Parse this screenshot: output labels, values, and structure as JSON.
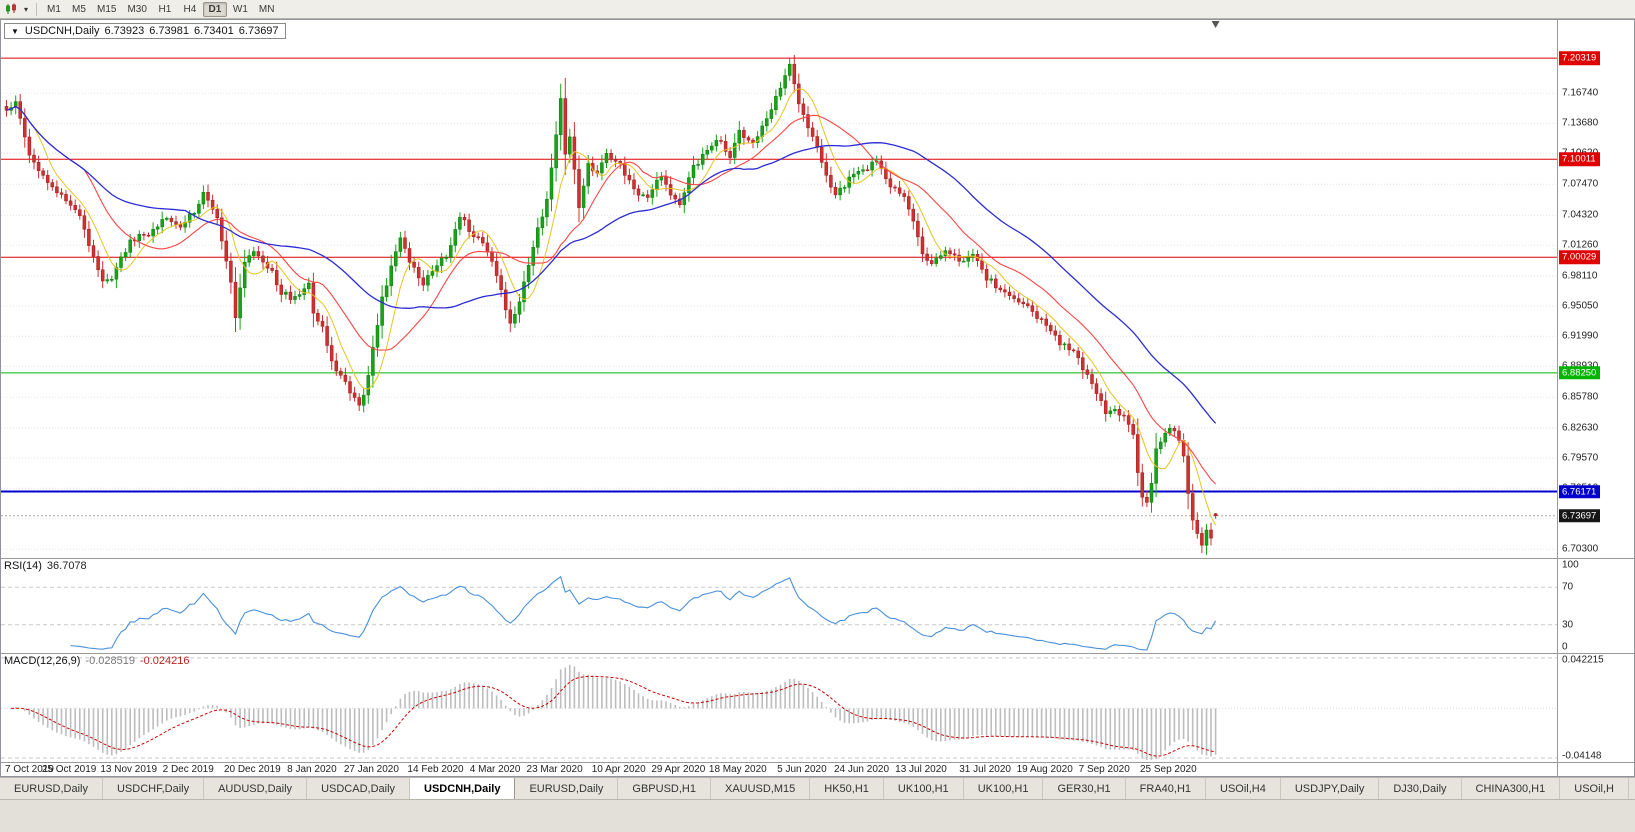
{
  "toolbar": {
    "timeframes": [
      "M1",
      "M5",
      "M15",
      "M30",
      "H1",
      "H4",
      "D1",
      "W1",
      "MN"
    ],
    "active_timeframe": "D1"
  },
  "chart": {
    "header": {
      "expander": "▼",
      "symbol": "USDCNH,Daily",
      "open": "6.73923",
      "high": "6.73981",
      "low": "6.73401",
      "close": "6.73697"
    },
    "price_axis_ticks": [
      "7.16740",
      "7.13680",
      "7.10620",
      "7.07470",
      "7.04320",
      "7.01260",
      "6.98110",
      "6.95050",
      "6.91990",
      "6.88930",
      "6.85780",
      "6.82630",
      "6.79570",
      "6.76510",
      "6.73450",
      "6.70300"
    ],
    "current_price_label": "6.73697"
  },
  "chart_data": {
    "type": "candlestick",
    "symbol": "USDCNH",
    "timeframe": "Daily",
    "title": "USDCNH,Daily",
    "last_ohlc": {
      "open": 6.73923,
      "high": 6.73981,
      "low": 6.73401,
      "close": 6.73697
    },
    "y_axis_range": [
      6.694,
      7.242
    ],
    "num_candles": 265,
    "horizontal_levels": [
      {
        "price": 7.20319,
        "label": "7.20319",
        "color": "#e00000",
        "width": 1
      },
      {
        "price": 7.10011,
        "label": "7.10011",
        "color": "#e00000",
        "width": 1
      },
      {
        "price": 7.00029,
        "label": "7.00029",
        "color": "#e00000",
        "width": 1
      },
      {
        "price": 6.8825,
        "label": "6.88250",
        "color": "#00b400",
        "width": 1
      },
      {
        "price": 6.76171,
        "label": "6.76171",
        "color": "#0000cc",
        "width": 2
      }
    ],
    "price_path_anchors": [
      [
        0,
        7.15
      ],
      [
        2,
        7.16
      ],
      [
        5,
        7.105
      ],
      [
        9,
        7.076
      ],
      [
        13,
        7.058
      ],
      [
        16,
        7.042
      ],
      [
        19,
        7.0
      ],
      [
        21,
        6.976
      ],
      [
        23,
        6.979
      ],
      [
        25,
        7.001
      ],
      [
        27,
        7.017
      ],
      [
        31,
        7.023
      ],
      [
        34,
        7.039
      ],
      [
        38,
        7.031
      ],
      [
        41,
        7.046
      ],
      [
        43,
        7.066
      ],
      [
        46,
        7.041
      ],
      [
        49,
        6.976
      ],
      [
        50,
        6.938
      ],
      [
        52,
        6.996
      ],
      [
        54,
        7.007
      ],
      [
        58,
        6.986
      ],
      [
        60,
        6.963
      ],
      [
        63,
        6.96
      ],
      [
        66,
        6.973
      ],
      [
        67,
        6.944
      ],
      [
        69,
        6.929
      ],
      [
        71,
        6.894
      ],
      [
        73,
        6.881
      ],
      [
        75,
        6.863
      ],
      [
        77,
        6.849
      ],
      [
        79,
        6.879
      ],
      [
        80,
        6.909
      ],
      [
        82,
        6.959
      ],
      [
        84,
        6.991
      ],
      [
        86,
        7.021
      ],
      [
        88,
        6.996
      ],
      [
        91,
        6.973
      ],
      [
        93,
        6.986
      ],
      [
        96,
        7.001
      ],
      [
        99,
        7.042
      ],
      [
        101,
        7.027
      ],
      [
        104,
        7.016
      ],
      [
        106,
        6.996
      ],
      [
        108,
        6.966
      ],
      [
        110,
        6.933
      ],
      [
        112,
        6.956
      ],
      [
        115,
        7.011
      ],
      [
        118,
        7.059
      ],
      [
        120,
        7.126
      ],
      [
        121,
        7.161
      ],
      [
        122,
        7.106
      ],
      [
        123,
        7.123
      ],
      [
        125,
        7.052
      ],
      [
        127,
        7.096
      ],
      [
        129,
        7.085
      ],
      [
        131,
        7.106
      ],
      [
        134,
        7.095
      ],
      [
        137,
        7.069
      ],
      [
        140,
        7.061
      ],
      [
        143,
        7.083
      ],
      [
        145,
        7.063
      ],
      [
        147,
        7.053
      ],
      [
        150,
        7.093
      ],
      [
        153,
        7.109
      ],
      [
        156,
        7.119
      ],
      [
        158,
        7.101
      ],
      [
        160,
        7.129
      ],
      [
        163,
        7.116
      ],
      [
        166,
        7.141
      ],
      [
        169,
        7.173
      ],
      [
        171,
        7.196
      ],
      [
        173,
        7.156
      ],
      [
        175,
        7.133
      ],
      [
        177,
        7.113
      ],
      [
        179,
        7.083
      ],
      [
        181,
        7.063
      ],
      [
        184,
        7.081
      ],
      [
        187,
        7.089
      ],
      [
        190,
        7.099
      ],
      [
        193,
        7.073
      ],
      [
        196,
        7.063
      ],
      [
        198,
        7.038
      ],
      [
        200,
        7.003
      ],
      [
        202,
        6.993
      ],
      [
        205,
        7.006
      ],
      [
        208,
        6.996
      ],
      [
        211,
        7.004
      ],
      [
        214,
        6.978
      ],
      [
        217,
        6.968
      ],
      [
        220,
        6.958
      ],
      [
        223,
        6.95
      ],
      [
        227,
        6.932
      ],
      [
        230,
        6.912
      ],
      [
        233,
        6.905
      ],
      [
        236,
        6.88
      ],
      [
        238,
        6.862
      ],
      [
        240,
        6.842
      ],
      [
        242,
        6.845
      ],
      [
        244,
        6.838
      ],
      [
        246,
        6.82
      ],
      [
        247,
        6.78
      ],
      [
        248,
        6.757
      ],
      [
        249,
        6.75
      ],
      [
        250,
        6.77
      ],
      [
        251,
        6.806
      ],
      [
        253,
        6.822
      ],
      [
        254,
        6.826
      ],
      [
        256,
        6.815
      ],
      [
        257,
        6.797
      ],
      [
        258,
        6.76
      ],
      [
        259,
        6.733
      ],
      [
        260,
        6.718
      ],
      [
        261,
        6.708
      ],
      [
        262,
        6.722
      ],
      [
        263,
        6.714
      ],
      [
        264,
        6.737
      ]
    ],
    "x_axis_dates": [
      {
        "t": "7 Oct 2019",
        "i": 0
      },
      {
        "t": "25 Oct 2019",
        "i": 14
      },
      {
        "t": "13 Nov 2019",
        "i": 27
      },
      {
        "t": "2 Dec 2019",
        "i": 40
      },
      {
        "t": "20 Dec 2019",
        "i": 54
      },
      {
        "t": "8 Jan 2020",
        "i": 67
      },
      {
        "t": "27 Jan 2020",
        "i": 80
      },
      {
        "t": "14 Feb 2020",
        "i": 94
      },
      {
        "t": "4 Mar 2020",
        "i": 107
      },
      {
        "t": "23 Mar 2020",
        "i": 120
      },
      {
        "t": "10 Apr 2020",
        "i": 134
      },
      {
        "t": "29 Apr 2020",
        "i": 147
      },
      {
        "t": "18 May 2020",
        "i": 160
      },
      {
        "t": "5 Jun 2020",
        "i": 174
      },
      {
        "t": "24 Jun 2020",
        "i": 187
      },
      {
        "t": "13 Jul 2020",
        "i": 200
      },
      {
        "t": "31 Jul 2020",
        "i": 214
      },
      {
        "t": "19 Aug 2020",
        "i": 227
      },
      {
        "t": "7 Sep 2020",
        "i": 240
      },
      {
        "t": "25 Sep 2020",
        "i": 254
      }
    ]
  },
  "indicators": {
    "rsi": {
      "name": "RSI(14)",
      "value": "36.7078",
      "period": 14,
      "levels": [
        70,
        30
      ],
      "axis_labels": [
        {
          "text": "100",
          "value": 100
        },
        {
          "text": "70",
          "value": 70
        },
        {
          "text": "30",
          "value": 30
        },
        {
          "text": "0",
          "value": 0
        }
      ]
    },
    "macd": {
      "name": "MACD(12,26,9)",
      "main": "-0.028519",
      "signal": "-0.024216",
      "params": [
        12,
        26,
        9
      ],
      "scale": {
        "max": 0.0455,
        "min": -0.0448
      },
      "axis_labels": [
        {
          "text": "0.042215",
          "value": 0.042215
        },
        {
          "text": "-0.04148",
          "value": -0.04148
        }
      ]
    }
  },
  "colors": {
    "candle_up": "#17a317",
    "candle_up_border": "#0b7a0b",
    "candle_down": "#d03030",
    "candle_down_border": "#9e1a1a",
    "ma_fast": "#e6c321",
    "ma_mid": "#ff4444",
    "ma_slow": "#2c2cd4",
    "rsi_line": "#4a90d9",
    "macd_hist": "#bdbdbd",
    "macd_signal": "#cc0000",
    "grid": "#e4e4e4",
    "current_price_line": "#a8a8a8",
    "current_price_badge": "#161616"
  },
  "tabs": {
    "items": [
      "EURUSD,Daily",
      "USDCHF,Daily",
      "AUDUSD,Daily",
      "USDCAD,Daily",
      "USDCNH,Daily",
      "EURUSD,Daily",
      "GBPUSD,H1",
      "XAUUSD,M15",
      "HK50,H1",
      "UK100,H1",
      "UK100,H1",
      "GER30,H1",
      "FRA40,H1",
      "USOil,H4",
      "USDJPY,Daily",
      "DJ30,Daily",
      "CHINA300,H1",
      "USOil,H"
    ],
    "active_index": 4
  }
}
